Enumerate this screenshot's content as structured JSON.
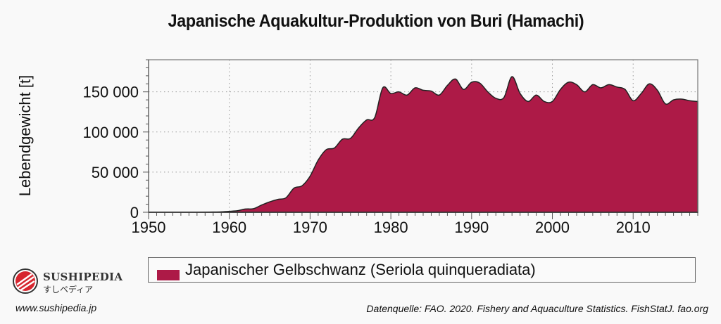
{
  "title": "Japanische Aquakultur-Produktion von Buri (Hamachi)",
  "legend": {
    "label": "Japanischer Gelbschwanz (Seriola quinqueradiata)",
    "color": "#ad1a47"
  },
  "logo": {
    "brand": "SUSHIPEDIA",
    "kana": "すしペディア",
    "icon": "sushi-roll-logo-icon"
  },
  "footer": {
    "website": "www.sushipedia.jp",
    "source": "Datenquelle: FAO. 2020. Fishery and Aquaculture Statistics. FishStatJ. fao.org"
  },
  "colors": {
    "fill": "#ad1a47",
    "stroke": "#222222",
    "background": "#f9f9f9",
    "grid": "#999999"
  },
  "chart_data": {
    "type": "area",
    "title": "Japanische Aquakultur-Produktion von Buri (Hamachi)",
    "xlabel": "",
    "ylabel": "Lebendgewicht [t]",
    "xlim": [
      1950,
      2018
    ],
    "ylim": [
      0,
      190000
    ],
    "x_ticks": [
      1950,
      1960,
      1970,
      1980,
      1990,
      2000,
      2010
    ],
    "x_tick_labels": [
      "1950",
      "1960",
      "1970",
      "1980",
      "1990",
      "2000",
      "2010"
    ],
    "y_ticks": [
      0,
      50000,
      100000,
      150000
    ],
    "y_tick_labels": [
      "0",
      "50 000",
      "100 000",
      "150 000"
    ],
    "grid": true,
    "grid_style": "dotted",
    "legend_position": "bottom",
    "series": [
      {
        "name": "Japanischer Gelbschwanz (Seriola quinqueradiata)",
        "color": "#ad1a47",
        "x": [
          1950,
          1951,
          1952,
          1953,
          1954,
          1955,
          1956,
          1957,
          1958,
          1959,
          1960,
          1961,
          1962,
          1963,
          1964,
          1965,
          1966,
          1967,
          1968,
          1969,
          1970,
          1971,
          1972,
          1973,
          1974,
          1975,
          1976,
          1977,
          1978,
          1979,
          1980,
          1981,
          1982,
          1983,
          1984,
          1985,
          1986,
          1987,
          1988,
          1989,
          1990,
          1991,
          1992,
          1993,
          1994,
          1995,
          1996,
          1997,
          1998,
          1999,
          2000,
          2001,
          2002,
          2003,
          2004,
          2005,
          2006,
          2007,
          2008,
          2009,
          2010,
          2011,
          2012,
          2013,
          2014,
          2015,
          2016,
          2017,
          2018
        ],
        "values": [
          0,
          0,
          0,
          0,
          0,
          0,
          0,
          100,
          300,
          600,
          1200,
          2000,
          4000,
          4500,
          9000,
          13000,
          16000,
          18000,
          30000,
          33000,
          45000,
          65000,
          78000,
          80000,
          91000,
          92000,
          105000,
          115000,
          118000,
          155000,
          148000,
          150000,
          146000,
          155000,
          152000,
          151000,
          146000,
          158000,
          166000,
          153000,
          162000,
          161000,
          150000,
          142000,
          143000,
          169000,
          148000,
          138000,
          146000,
          138000,
          138000,
          153000,
          162000,
          159000,
          150000,
          159000,
          155000,
          159000,
          156000,
          153000,
          139000,
          148000,
          160000,
          152000,
          135000,
          140000,
          141000,
          139000,
          138000
        ]
      }
    ]
  }
}
